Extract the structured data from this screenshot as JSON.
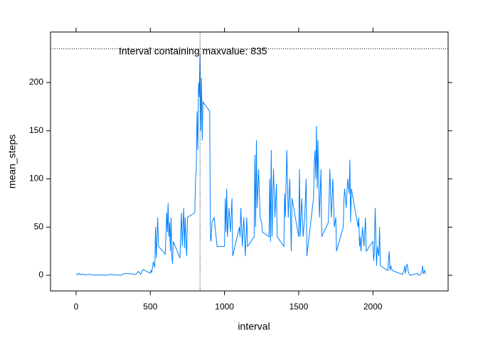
{
  "chart_data": {
    "type": "line",
    "xlabel": "interval",
    "ylabel": "mean_steps",
    "annotation": "Interval containing maxvalue: 835",
    "vline": 835,
    "hline": 235,
    "color": "#0080ff",
    "xlim": [
      -172.6,
      2507
    ],
    "ylim": [
      -16.2,
      252.4
    ],
    "xticks": [
      0,
      500,
      1000,
      1500,
      2000
    ],
    "yticks": [
      0,
      50,
      100,
      150,
      200
    ],
    "x": [
      0,
      10,
      20,
      30,
      40,
      55,
      100,
      120,
      150,
      200,
      230,
      300,
      330,
      400,
      420,
      435,
      450,
      500,
      505,
      510,
      520,
      530,
      535,
      540,
      550,
      555,
      600,
      605,
      610,
      615,
      620,
      625,
      630,
      635,
      640,
      645,
      650,
      655,
      700,
      705,
      710,
      715,
      720,
      725,
      730,
      735,
      740,
      745,
      750,
      800,
      805,
      810,
      815,
      820,
      825,
      830,
      835,
      840,
      845,
      850,
      855,
      900,
      905,
      910,
      915,
      930,
      950,
      1000,
      1005,
      1010,
      1015,
      1020,
      1030,
      1040,
      1050,
      1055,
      1100,
      1105,
      1110,
      1120,
      1130,
      1140,
      1150,
      1155,
      1200,
      1205,
      1210,
      1215,
      1220,
      1230,
      1240,
      1250,
      1255,
      1300,
      1305,
      1310,
      1315,
      1320,
      1330,
      1340,
      1350,
      1355,
      1400,
      1405,
      1410,
      1420,
      1430,
      1440,
      1450,
      1455,
      1500,
      1505,
      1510,
      1520,
      1530,
      1540,
      1550,
      1555,
      1600,
      1605,
      1610,
      1615,
      1620,
      1625,
      1630,
      1640,
      1650,
      1655,
      1700,
      1705,
      1710,
      1720,
      1730,
      1740,
      1750,
      1755,
      1800,
      1805,
      1810,
      1820,
      1830,
      1840,
      1845,
      1850,
      1855,
      1900,
      1905,
      1910,
      1915,
      1920,
      1930,
      1940,
      1950,
      1955,
      2000,
      2005,
      2010,
      2015,
      2020,
      2025,
      2030,
      2040,
      2045,
      2050,
      2100,
      2105,
      2110,
      2115,
      2120,
      2130,
      2200,
      2210,
      2215,
      2220,
      2230,
      2240,
      2250,
      2300,
      2310,
      2320,
      2330,
      2335,
      2340,
      2350,
      2355
    ],
    "values": [
      1.5,
      0.5,
      2,
      0.3,
      1.5,
      0.5,
      1,
      0,
      0.5,
      0,
      1,
      0,
      2,
      1,
      4,
      1,
      6,
      2,
      5,
      3,
      14,
      8,
      50,
      18,
      60,
      30,
      22,
      40,
      65,
      45,
      75,
      40,
      55,
      25,
      60,
      20,
      12,
      35,
      18,
      45,
      65,
      30,
      50,
      70,
      28,
      60,
      35,
      20,
      60,
      65,
      100,
      110,
      170,
      130,
      200,
      185,
      230,
      150,
      205,
      140,
      180,
      170,
      40,
      35,
      55,
      60,
      30,
      30,
      80,
      45,
      90,
      40,
      70,
      45,
      80,
      20,
      50,
      40,
      70,
      30,
      60,
      20,
      60,
      30,
      40,
      125,
      50,
      140,
      70,
      110,
      60,
      55,
      45,
      40,
      100,
      35,
      130,
      40,
      110,
      60,
      95,
      40,
      30,
      85,
      60,
      130,
      60,
      100,
      25,
      80,
      40,
      110,
      40,
      80,
      40,
      60,
      100,
      20,
      80,
      115,
      130,
      100,
      155,
      90,
      140,
      60,
      110,
      40,
      55,
      80,
      110,
      60,
      100,
      50,
      60,
      25,
      50,
      80,
      90,
      70,
      100,
      85,
      120,
      55,
      90,
      50,
      60,
      30,
      40,
      25,
      50,
      30,
      60,
      25,
      35,
      15,
      25,
      70,
      40,
      10,
      30,
      20,
      50,
      10,
      5,
      15,
      25,
      5,
      10,
      5,
      1,
      5,
      10,
      2,
      12,
      3,
      0,
      2,
      0,
      1,
      3,
      10,
      2,
      5,
      1
    ]
  }
}
